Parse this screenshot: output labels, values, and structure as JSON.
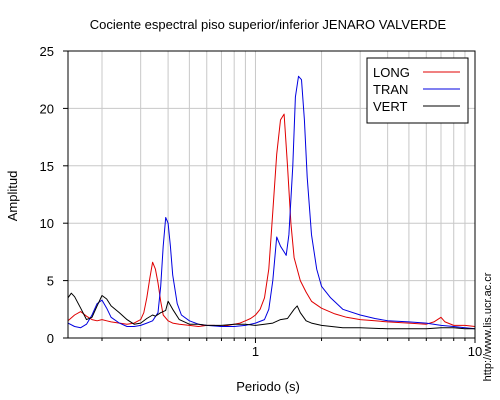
{
  "chart_data": {
    "type": "line",
    "title": "Cociente espectral piso superior/inferior  JENARO VALVERDE",
    "xlabel": "Periodo (s)",
    "ylabel": "Amplitud",
    "xscale": "log",
    "xlim": [
      0.14,
      10
    ],
    "ylim": [
      0,
      25
    ],
    "x_tick_labels": [
      "1",
      "10"
    ],
    "y_ticks": [
      0,
      5,
      10,
      15,
      20,
      25
    ],
    "grid": true,
    "legend_position": "top-right",
    "watermark": "http://www.lis.ucr.ac.cr",
    "series": [
      {
        "name": "LONG",
        "color": "#e00000",
        "points": [
          [
            0.14,
            1.5
          ],
          [
            0.15,
            2.0
          ],
          [
            0.16,
            2.3
          ],
          [
            0.17,
            1.9
          ],
          [
            0.18,
            1.6
          ],
          [
            0.19,
            1.5
          ],
          [
            0.2,
            1.6
          ],
          [
            0.21,
            1.5
          ],
          [
            0.22,
            1.4
          ],
          [
            0.24,
            1.3
          ],
          [
            0.26,
            1.2
          ],
          [
            0.28,
            1.3
          ],
          [
            0.3,
            1.6
          ],
          [
            0.31,
            2.2
          ],
          [
            0.32,
            3.5
          ],
          [
            0.33,
            5.2
          ],
          [
            0.34,
            6.6
          ],
          [
            0.35,
            6.0
          ],
          [
            0.36,
            4.8
          ],
          [
            0.37,
            3.2
          ],
          [
            0.38,
            2.0
          ],
          [
            0.4,
            1.5
          ],
          [
            0.42,
            1.3
          ],
          [
            0.45,
            1.2
          ],
          [
            0.5,
            1.1
          ],
          [
            0.55,
            1.0
          ],
          [
            0.6,
            1.1
          ],
          [
            0.65,
            1.1
          ],
          [
            0.7,
            1.0
          ],
          [
            0.75,
            1.1
          ],
          [
            0.8,
            1.2
          ],
          [
            0.85,
            1.3
          ],
          [
            0.9,
            1.5
          ],
          [
            0.95,
            1.7
          ],
          [
            1.0,
            2.0
          ],
          [
            1.05,
            2.5
          ],
          [
            1.1,
            3.5
          ],
          [
            1.15,
            6.0
          ],
          [
            1.2,
            11.0
          ],
          [
            1.25,
            16.0
          ],
          [
            1.3,
            19.0
          ],
          [
            1.35,
            19.5
          ],
          [
            1.4,
            15.0
          ],
          [
            1.45,
            10.0
          ],
          [
            1.5,
            7.0
          ],
          [
            1.6,
            5.0
          ],
          [
            1.7,
            4.0
          ],
          [
            1.8,
            3.2
          ],
          [
            2.0,
            2.6
          ],
          [
            2.3,
            2.1
          ],
          [
            2.6,
            1.8
          ],
          [
            3.0,
            1.6
          ],
          [
            3.5,
            1.5
          ],
          [
            4.0,
            1.4
          ],
          [
            5.0,
            1.3
          ],
          [
            6.0,
            1.2
          ],
          [
            6.5,
            1.4
          ],
          [
            7.0,
            1.8
          ],
          [
            7.3,
            1.4
          ],
          [
            8.0,
            1.1
          ],
          [
            9.0,
            1.1
          ],
          [
            10.0,
            1.0
          ]
        ]
      },
      {
        "name": "TRAN",
        "color": "#0000e0",
        "points": [
          [
            0.14,
            1.3
          ],
          [
            0.15,
            1.0
          ],
          [
            0.16,
            0.9
          ],
          [
            0.17,
            1.2
          ],
          [
            0.18,
            2.0
          ],
          [
            0.19,
            3.0
          ],
          [
            0.2,
            3.3
          ],
          [
            0.21,
            2.6
          ],
          [
            0.22,
            1.8
          ],
          [
            0.24,
            1.3
          ],
          [
            0.26,
            1.0
          ],
          [
            0.28,
            1.0
          ],
          [
            0.3,
            1.1
          ],
          [
            0.32,
            1.3
          ],
          [
            0.34,
            1.5
          ],
          [
            0.36,
            2.2
          ],
          [
            0.37,
            4.5
          ],
          [
            0.38,
            8.0
          ],
          [
            0.39,
            10.5
          ],
          [
            0.4,
            10.0
          ],
          [
            0.41,
            8.0
          ],
          [
            0.42,
            5.5
          ],
          [
            0.44,
            3.0
          ],
          [
            0.46,
            2.0
          ],
          [
            0.5,
            1.5
          ],
          [
            0.55,
            1.2
          ],
          [
            0.6,
            1.1
          ],
          [
            0.7,
            1.0
          ],
          [
            0.8,
            1.0
          ],
          [
            0.9,
            1.1
          ],
          [
            1.0,
            1.3
          ],
          [
            1.1,
            1.6
          ],
          [
            1.15,
            2.5
          ],
          [
            1.2,
            5.0
          ],
          [
            1.25,
            8.8
          ],
          [
            1.3,
            8.0
          ],
          [
            1.35,
            7.5
          ],
          [
            1.38,
            7.2
          ],
          [
            1.42,
            9.0
          ],
          [
            1.48,
            15.0
          ],
          [
            1.52,
            21.0
          ],
          [
            1.57,
            22.8
          ],
          [
            1.62,
            22.5
          ],
          [
            1.67,
            19.0
          ],
          [
            1.72,
            14.0
          ],
          [
            1.8,
            9.0
          ],
          [
            1.9,
            6.0
          ],
          [
            2.0,
            4.5
          ],
          [
            2.2,
            3.5
          ],
          [
            2.5,
            2.5
          ],
          [
            3.0,
            2.0
          ],
          [
            3.5,
            1.7
          ],
          [
            4.0,
            1.5
          ],
          [
            5.0,
            1.4
          ],
          [
            6.0,
            1.3
          ],
          [
            7.0,
            1.1
          ],
          [
            8.0,
            1.0
          ],
          [
            9.0,
            0.9
          ],
          [
            10.0,
            0.8
          ]
        ]
      },
      {
        "name": "VERT",
        "color": "#000000",
        "points": [
          [
            0.14,
            3.5
          ],
          [
            0.145,
            3.9
          ],
          [
            0.15,
            3.6
          ],
          [
            0.16,
            2.6
          ],
          [
            0.17,
            1.6
          ],
          [
            0.18,
            1.8
          ],
          [
            0.19,
            2.8
          ],
          [
            0.2,
            3.7
          ],
          [
            0.21,
            3.4
          ],
          [
            0.22,
            2.8
          ],
          [
            0.24,
            2.2
          ],
          [
            0.26,
            1.6
          ],
          [
            0.28,
            1.2
          ],
          [
            0.3,
            1.3
          ],
          [
            0.32,
            1.7
          ],
          [
            0.34,
            2.0
          ],
          [
            0.35,
            1.9
          ],
          [
            0.37,
            2.2
          ],
          [
            0.39,
            2.4
          ],
          [
            0.4,
            3.2
          ],
          [
            0.42,
            2.5
          ],
          [
            0.45,
            1.6
          ],
          [
            0.5,
            1.2
          ],
          [
            0.55,
            1.2
          ],
          [
            0.6,
            1.1
          ],
          [
            0.7,
            1.1
          ],
          [
            0.8,
            1.2
          ],
          [
            0.9,
            1.2
          ],
          [
            1.0,
            1.1
          ],
          [
            1.1,
            1.2
          ],
          [
            1.2,
            1.3
          ],
          [
            1.3,
            1.6
          ],
          [
            1.4,
            1.7
          ],
          [
            1.5,
            2.5
          ],
          [
            1.55,
            2.8
          ],
          [
            1.6,
            2.2
          ],
          [
            1.7,
            1.5
          ],
          [
            1.8,
            1.3
          ],
          [
            2.0,
            1.1
          ],
          [
            2.5,
            0.9
          ],
          [
            3.0,
            0.9
          ],
          [
            4.0,
            0.8
          ],
          [
            5.0,
            0.8
          ],
          [
            6.0,
            0.8
          ],
          [
            7.0,
            0.9
          ],
          [
            8.0,
            0.9
          ],
          [
            9.0,
            0.8
          ],
          [
            10.0,
            0.8
          ]
        ]
      }
    ]
  }
}
